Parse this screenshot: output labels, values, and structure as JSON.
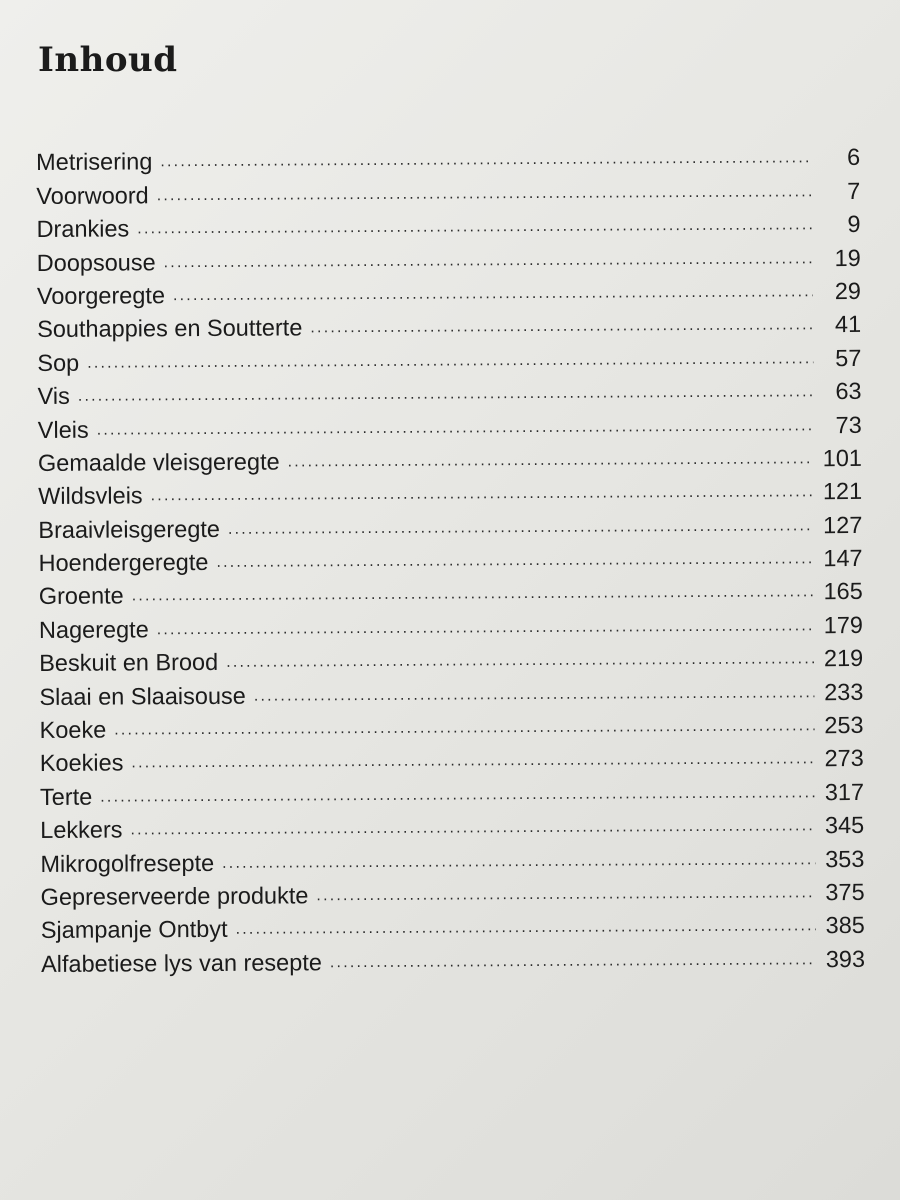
{
  "title": "Inhoud",
  "entries": [
    {
      "label": "Metrisering",
      "page": "6"
    },
    {
      "label": "Voorwoord",
      "page": "7"
    },
    {
      "label": "Drankies",
      "page": "9"
    },
    {
      "label": "Doopsouse",
      "page": "19"
    },
    {
      "label": "Voorgeregte",
      "page": "29"
    },
    {
      "label": "Southappies en Soutterte",
      "page": "41"
    },
    {
      "label": "Sop",
      "page": "57"
    },
    {
      "label": "Vis",
      "page": "63"
    },
    {
      "label": "Vleis",
      "page": "73"
    },
    {
      "label": "Gemaalde vleisgeregte",
      "page": "101"
    },
    {
      "label": "Wildsvleis",
      "page": "121"
    },
    {
      "label": "Braaivleisgeregte",
      "page": "127"
    },
    {
      "label": "Hoendergeregte",
      "page": "147"
    },
    {
      "label": "Groente",
      "page": "165"
    },
    {
      "label": "Nageregte",
      "page": "179"
    },
    {
      "label": "Beskuit en Brood",
      "page": "219"
    },
    {
      "label": "Slaai en Slaaisouse",
      "page": "233"
    },
    {
      "label": "Koeke",
      "page": "253"
    },
    {
      "label": "Koekies",
      "page": "273"
    },
    {
      "label": "Terte",
      "page": "317"
    },
    {
      "label": "Lekkers",
      "page": "345"
    },
    {
      "label": "Mikrogolfresepte",
      "page": "353"
    },
    {
      "label": "Gepreserveerde produkte",
      "page": "375"
    },
    {
      "label": "Sjampanje Ontbyt",
      "page": "385"
    },
    {
      "label": "Alfabetiese lys van resepte",
      "page": "393"
    }
  ]
}
